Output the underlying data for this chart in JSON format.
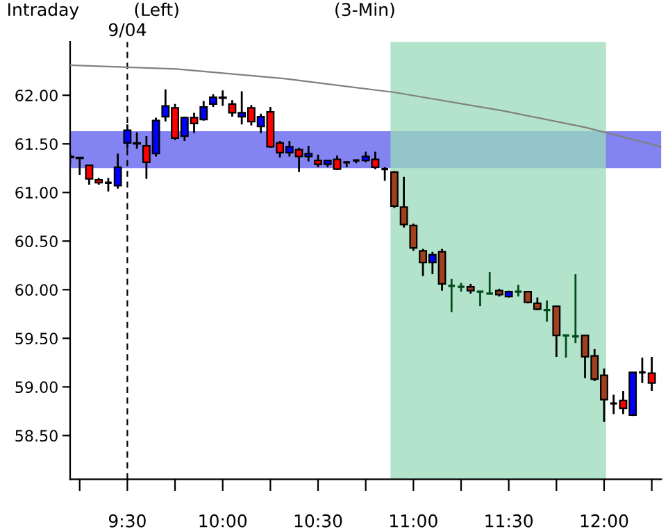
{
  "chart_data": {
    "type": "candlestick",
    "title": "Intraday",
    "annotations": [
      "(Left)",
      "(3-Min)"
    ],
    "x": [
      9.2,
      9.25,
      9.3,
      9.35,
      9.4,
      9.45,
      9.5,
      9.55,
      9.6,
      9.65,
      9.7,
      9.75,
      9.8,
      9.85,
      9.9,
      9.95,
      10.0,
      10.05,
      10.1,
      10.15,
      10.2,
      10.25,
      10.3,
      10.35,
      10.4,
      10.45,
      10.5,
      10.55,
      10.6,
      10.65,
      10.7,
      10.75,
      10.8,
      10.85,
      10.9,
      10.95,
      11.0,
      11.05,
      11.1,
      11.15,
      11.2,
      11.25,
      11.3,
      11.35,
      11.4,
      11.45,
      11.5,
      11.55,
      11.6,
      11.65,
      11.7,
      11.75,
      11.8,
      11.85,
      11.9,
      11.95,
      12.0,
      12.05,
      12.1,
      12.15,
      12.2,
      12.25
    ],
    "ohlc": [
      [
        61.37,
        61.4,
        61.3,
        61.36
      ],
      [
        61.36,
        61.36,
        61.18,
        61.35
      ],
      [
        61.28,
        61.28,
        61.08,
        61.14
      ],
      [
        61.13,
        61.15,
        61.08,
        61.1
      ],
      [
        61.1,
        61.15,
        61.01,
        61.1
      ],
      [
        61.07,
        61.4,
        61.04,
        61.26
      ],
      [
        61.51,
        61.7,
        61.45,
        61.64
      ],
      [
        61.51,
        61.62,
        61.45,
        61.5
      ],
      [
        61.48,
        61.58,
        61.14,
        61.31
      ],
      [
        61.4,
        61.77,
        61.37,
        61.74
      ],
      [
        61.78,
        62.06,
        61.73,
        61.89
      ],
      [
        61.87,
        61.91,
        61.54,
        61.56
      ],
      [
        61.58,
        61.78,
        61.53,
        61.77
      ],
      [
        61.77,
        61.82,
        61.61,
        61.71
      ],
      [
        61.75,
        61.94,
        61.74,
        61.88
      ],
      [
        61.91,
        62.01,
        61.88,
        61.98
      ],
      [
        61.97,
        62.05,
        61.89,
        61.98
      ],
      [
        61.91,
        61.95,
        61.78,
        61.82
      ],
      [
        61.78,
        62.04,
        61.7,
        61.82
      ],
      [
        61.87,
        61.9,
        61.69,
        61.73
      ],
      [
        61.68,
        61.81,
        61.61,
        61.78
      ],
      [
        61.83,
        61.88,
        61.46,
        61.47
      ],
      [
        61.51,
        61.53,
        61.36,
        61.41
      ],
      [
        61.41,
        61.53,
        61.37,
        61.47
      ],
      [
        61.44,
        61.46,
        61.21,
        61.37
      ],
      [
        61.37,
        61.48,
        61.32,
        61.4
      ],
      [
        61.33,
        61.39,
        61.26,
        61.29
      ],
      [
        61.29,
        61.33,
        61.26,
        61.33
      ],
      [
        61.34,
        61.38,
        61.23,
        61.24
      ],
      [
        61.31,
        61.32,
        61.26,
        61.31
      ],
      [
        61.33,
        61.34,
        61.3,
        61.33
      ],
      [
        61.33,
        61.42,
        61.31,
        61.37
      ],
      [
        61.34,
        61.42,
        61.24,
        61.26
      ],
      [
        61.24,
        61.26,
        61.12,
        61.24
      ],
      [
        61.21,
        61.22,
        60.84,
        60.86
      ],
      [
        60.85,
        61.16,
        60.64,
        60.67
      ],
      [
        60.66,
        60.68,
        60.4,
        60.43
      ],
      [
        60.4,
        60.42,
        60.14,
        60.28
      ],
      [
        60.28,
        60.39,
        60.16,
        60.36
      ],
      [
        60.39,
        60.42,
        59.99,
        60.06
      ],
      [
        60.04,
        60.11,
        59.77,
        60.04
      ],
      [
        60.03,
        60.07,
        59.98,
        60.03
      ],
      [
        60.03,
        60.06,
        59.96,
        59.99
      ],
      [
        59.98,
        59.98,
        59.83,
        59.98
      ],
      [
        59.96,
        60.18,
        59.95,
        59.96
      ],
      [
        59.99,
        60.01,
        59.93,
        59.95
      ],
      [
        59.93,
        59.99,
        59.92,
        59.98
      ],
      [
        59.98,
        60.05,
        59.93,
        59.98
      ],
      [
        59.98,
        59.98,
        59.86,
        59.87
      ],
      [
        59.86,
        59.92,
        59.79,
        59.8
      ],
      [
        59.79,
        59.89,
        59.67,
        59.79
      ],
      [
        59.83,
        59.83,
        59.31,
        59.53
      ],
      [
        59.53,
        59.53,
        59.3,
        59.53
      ],
      [
        59.52,
        60.16,
        59.45,
        59.52
      ],
      [
        59.53,
        59.53,
        59.09,
        59.31
      ],
      [
        59.32,
        59.39,
        59.06,
        59.08
      ],
      [
        59.12,
        59.19,
        58.64,
        58.87
      ],
      [
        58.83,
        58.92,
        58.72,
        58.83
      ],
      [
        58.86,
        58.96,
        58.72,
        58.78
      ],
      [
        58.71,
        59.15,
        58.7,
        59.15
      ],
      [
        59.15,
        59.3,
        59.04,
        59.15
      ],
      [
        59.14,
        59.31,
        58.96,
        59.04
      ]
    ],
    "colors": [
      "#000000",
      "#000000",
      "#ff0000",
      "#ff0000",
      "#000000",
      "#0000ff",
      "#0000ff",
      "#000000",
      "#ff0000",
      "#0000ff",
      "#0000ff",
      "#ff0000",
      "#0000ff",
      "#ff0000",
      "#0000ff",
      "#0000ff",
      "#000000",
      "#ff0000",
      "#0000ff",
      "#ff0000",
      "#0000ff",
      "#ff0000",
      "#ff0000",
      "#0000ff",
      "#ff0000",
      "#0000ff",
      "#ff0000",
      "#0000ff",
      "#ff0000",
      "#000000",
      "#000000",
      "#0000ff",
      "#ff0000",
      "#000000",
      "#a0401e",
      "#a0401e",
      "#a0401e",
      "#a0401e",
      "#0000ff",
      "#a0401e",
      "#004d1a",
      "#004d1a",
      "#a0401e",
      "#004d1a",
      "#004d1a",
      "#a0401e",
      "#0000ff",
      "#004d1a",
      "#a0401e",
      "#a0401e",
      "#004d1a",
      "#a0401e",
      "#004d1a",
      "#004d1a",
      "#a0401e",
      "#a0401e",
      "#a0401e",
      "#000000",
      "#ff0000",
      "#0000ff",
      "#000000",
      "#ff0000"
    ],
    "series": [
      {
        "type": "line",
        "color": "#808080",
        "x": [
          9.2,
          9.757,
          10.329,
          10.9,
          11.471,
          11.9,
          12.3
        ],
        "values": [
          62.31,
          62.27,
          62.17,
          62.03,
          61.84,
          61.67,
          61.47
        ]
      }
    ],
    "ref_lines": [
      {
        "axis": "x",
        "value": 9.5,
        "label": "9/04",
        "line_style": "dashed",
        "color": "#000000"
      }
    ],
    "bands": [
      {
        "axis": "y",
        "from": 61.25,
        "to": 61.63,
        "color": "#5a5aee"
      },
      {
        "axis": "x",
        "from": 10.88,
        "to": 12.01,
        "color": "#99dbb9"
      }
    ],
    "xlim": [
      9.2,
      12.3
    ],
    "ylim": [
      58.05,
      62.55
    ],
    "xticks": [
      {
        "value": 9.25,
        "label": null
      },
      {
        "value": 9.5,
        "label": "9:30"
      },
      {
        "value": 9.75,
        "label": null
      },
      {
        "value": 10.0,
        "label": "10:00"
      },
      {
        "value": 10.25,
        "label": null
      },
      {
        "value": 10.5,
        "label": "10:30"
      },
      {
        "value": 10.75,
        "label": null
      },
      {
        "value": 11.0,
        "label": "11:00"
      },
      {
        "value": 11.25,
        "label": null
      },
      {
        "value": 11.5,
        "label": "11:30"
      },
      {
        "value": 11.75,
        "label": null
      },
      {
        "value": 12.0,
        "label": "12:00"
      },
      {
        "value": 12.25,
        "label": null
      }
    ],
    "yticks": [
      {
        "value": 58.5,
        "label": "58.50"
      },
      {
        "value": 59,
        "label": "59.00"
      },
      {
        "value": 59.5,
        "label": "59.50"
      },
      {
        "value": 60,
        "label": "60.00"
      },
      {
        "value": 60.5,
        "label": "60.50"
      },
      {
        "value": 61,
        "label": "61.00"
      },
      {
        "value": 61.5,
        "label": "61.50"
      },
      {
        "value": 62,
        "label": "62.00"
      }
    ],
    "grid": false,
    "legend": false
  }
}
